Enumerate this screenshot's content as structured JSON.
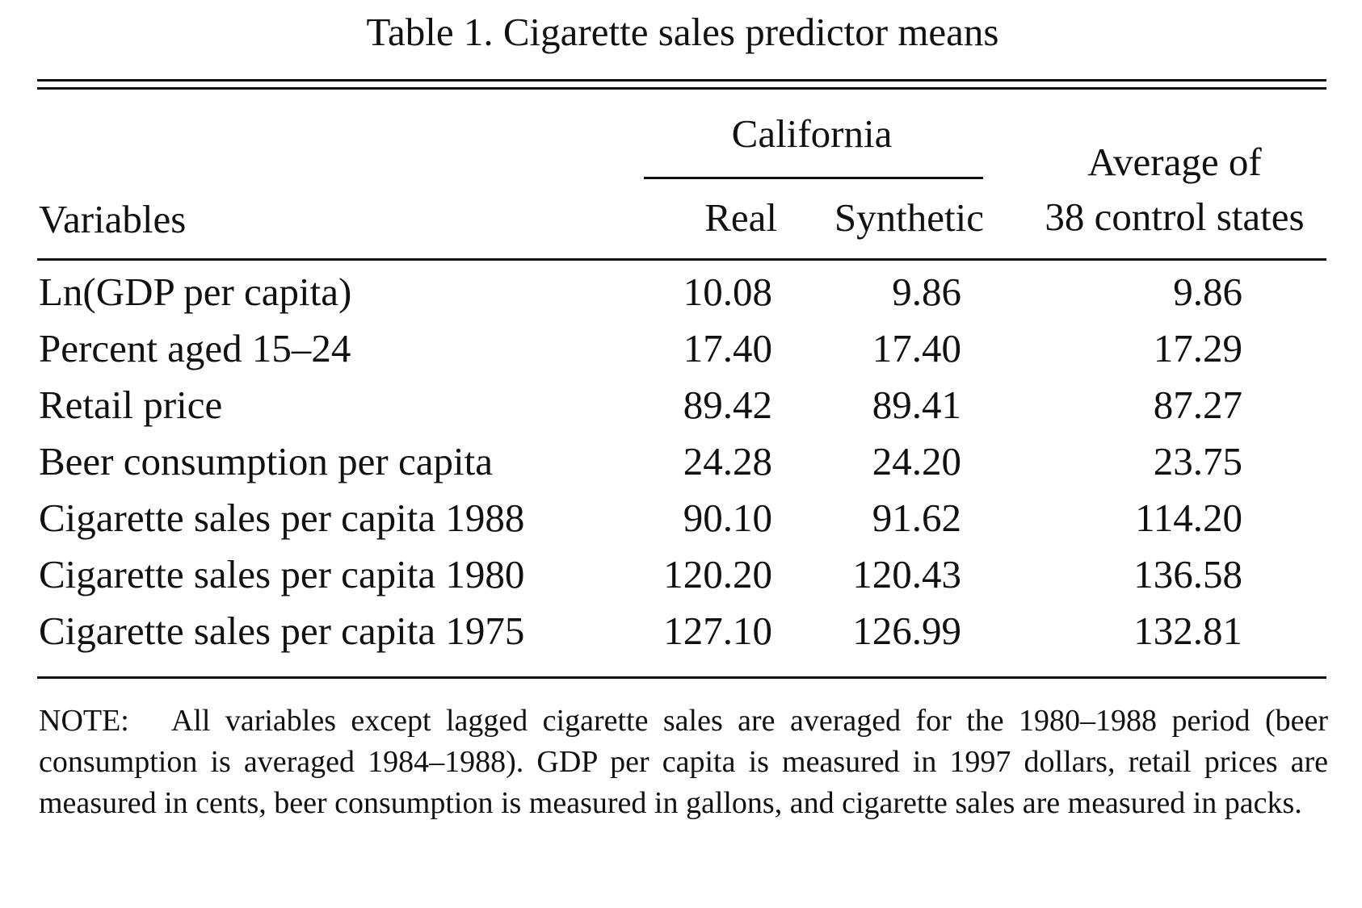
{
  "title": "Table 1.  Cigarette sales predictor means",
  "headers": {
    "variables": "Variables",
    "california_group": "California",
    "real": "Real",
    "synthetic": "Synthetic",
    "average_line1": "Average of",
    "average_line2": "38 control states"
  },
  "rows": [
    {
      "variable": "Ln(GDP per capita)",
      "real": "10.08",
      "synthetic": "9.86",
      "average": "9.86"
    },
    {
      "variable": "Percent aged 15–24",
      "real": "17.40",
      "synthetic": "17.40",
      "average": "17.29"
    },
    {
      "variable": "Retail price",
      "real": "89.42",
      "synthetic": "89.41",
      "average": "87.27"
    },
    {
      "variable": "Beer consumption per capita",
      "real": "24.28",
      "synthetic": "24.20",
      "average": "23.75"
    },
    {
      "variable": "Cigarette sales per capita 1988",
      "real": "90.10",
      "synthetic": "91.62",
      "average": "114.20"
    },
    {
      "variable": "Cigarette sales per capita 1980",
      "real": "120.20",
      "synthetic": "120.43",
      "average": "136.58"
    },
    {
      "variable": "Cigarette sales per capita 1975",
      "real": "127.10",
      "synthetic": "126.99",
      "average": "132.81"
    }
  ],
  "note": {
    "label": "NOTE:",
    "text": "All variables except lagged cigarette sales are averaged for the 1980–1988 period (beer consumption is averaged 1984–1988). GDP per capita is measured in 1997 dollars, retail prices are measured in cents, beer consumption is measured in gallons, and cigarette sales are measured in packs."
  }
}
